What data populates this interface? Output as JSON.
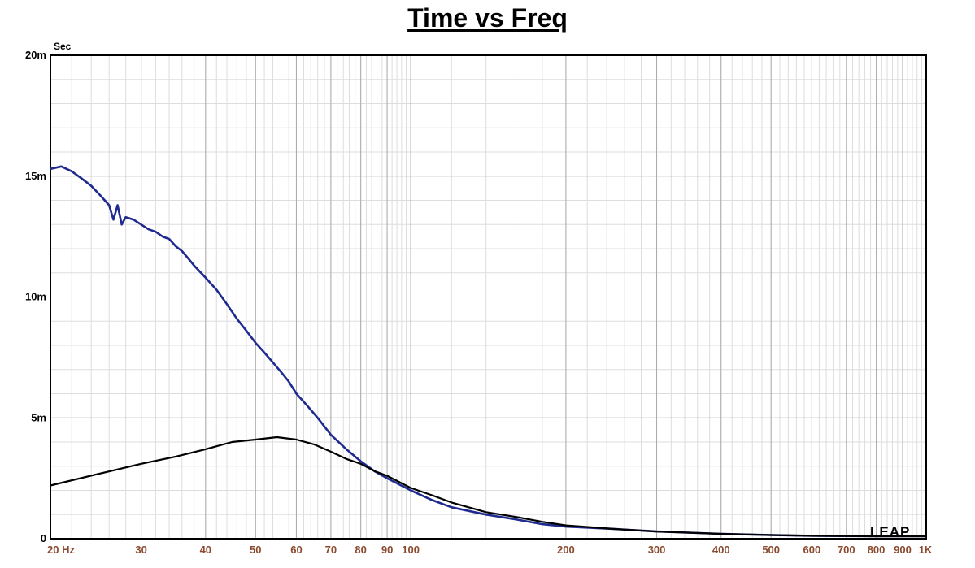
{
  "chart_data": {
    "type": "line",
    "title": "Time vs Freq",
    "y_unit_label": "Sec",
    "xscale": "log",
    "xlim": [
      20,
      1000
    ],
    "ylim": [
      0,
      0.02
    ],
    "grid": true,
    "x_tick_labels": [
      {
        "v": 20,
        "t": "20  Hz"
      },
      {
        "v": 30,
        "t": "30"
      },
      {
        "v": 40,
        "t": "40"
      },
      {
        "v": 50,
        "t": "50"
      },
      {
        "v": 60,
        "t": "60"
      },
      {
        "v": 70,
        "t": "70"
      },
      {
        "v": 80,
        "t": "80"
      },
      {
        "v": 90,
        "t": "90"
      },
      {
        "v": 100,
        "t": "100"
      },
      {
        "v": 200,
        "t": "200"
      },
      {
        "v": 300,
        "t": "300"
      },
      {
        "v": 400,
        "t": "400"
      },
      {
        "v": 500,
        "t": "500"
      },
      {
        "v": 600,
        "t": "600"
      },
      {
        "v": 700,
        "t": "700"
      },
      {
        "v": 800,
        "t": "800"
      },
      {
        "v": 900,
        "t": "900"
      },
      {
        "v": 1000,
        "t": "1K"
      }
    ],
    "y_tick_labels": [
      {
        "v": 0,
        "t": "0"
      },
      {
        "v": 0.005,
        "t": "5m"
      },
      {
        "v": 0.01,
        "t": "10m"
      },
      {
        "v": 0.015,
        "t": "15m"
      },
      {
        "v": 0.02,
        "t": "20m"
      }
    ],
    "series": [
      {
        "color": "#1f2a8f",
        "points": [
          [
            20,
            0.0153
          ],
          [
            21,
            0.0154
          ],
          [
            22,
            0.0152
          ],
          [
            23,
            0.0149
          ],
          [
            24,
            0.0146
          ],
          [
            25,
            0.0142
          ],
          [
            26,
            0.0138
          ],
          [
            26.5,
            0.0132
          ],
          [
            27,
            0.0138
          ],
          [
            27.5,
            0.013
          ],
          [
            28,
            0.0133
          ],
          [
            29,
            0.0132
          ],
          [
            30,
            0.013
          ],
          [
            31,
            0.0128
          ],
          [
            32,
            0.0127
          ],
          [
            33,
            0.0125
          ],
          [
            34,
            0.0124
          ],
          [
            35,
            0.0121
          ],
          [
            36,
            0.0119
          ],
          [
            37,
            0.0116
          ],
          [
            38,
            0.0113
          ],
          [
            40,
            0.0108
          ],
          [
            42,
            0.0103
          ],
          [
            44,
            0.0097
          ],
          [
            46,
            0.0091
          ],
          [
            48,
            0.0086
          ],
          [
            50,
            0.0081
          ],
          [
            52,
            0.0077
          ],
          [
            54,
            0.0073
          ],
          [
            56,
            0.0069
          ],
          [
            58,
            0.0065
          ],
          [
            60,
            0.006
          ],
          [
            63,
            0.0055
          ],
          [
            66,
            0.005
          ],
          [
            70,
            0.0043
          ],
          [
            75,
            0.0037
          ],
          [
            80,
            0.0032
          ],
          [
            85,
            0.0028
          ],
          [
            90,
            0.0025
          ],
          [
            100,
            0.002
          ],
          [
            110,
            0.0016
          ],
          [
            120,
            0.0013
          ],
          [
            140,
            0.001
          ],
          [
            160,
            0.0008
          ],
          [
            180,
            0.0006
          ],
          [
            200,
            0.0005
          ],
          [
            250,
            0.0004
          ],
          [
            300,
            0.0003
          ],
          [
            400,
            0.0002
          ],
          [
            500,
            0.00015
          ],
          [
            600,
            0.00012
          ],
          [
            800,
            0.0001
          ],
          [
            1000,
            0.0001
          ]
        ]
      },
      {
        "color": "#000000",
        "points": [
          [
            20,
            0.0022
          ],
          [
            25,
            0.0027
          ],
          [
            30,
            0.0031
          ],
          [
            35,
            0.0034
          ],
          [
            40,
            0.0037
          ],
          [
            45,
            0.004
          ],
          [
            50,
            0.0041
          ],
          [
            55,
            0.0042
          ],
          [
            60,
            0.0041
          ],
          [
            65,
            0.0039
          ],
          [
            70,
            0.0036
          ],
          [
            75,
            0.0033
          ],
          [
            80,
            0.0031
          ],
          [
            85,
            0.0028
          ],
          [
            90,
            0.0026
          ],
          [
            100,
            0.0021
          ],
          [
            110,
            0.0018
          ],
          [
            120,
            0.0015
          ],
          [
            140,
            0.0011
          ],
          [
            160,
            0.0009
          ],
          [
            180,
            0.0007
          ],
          [
            200,
            0.00055
          ],
          [
            250,
            0.0004
          ],
          [
            300,
            0.0003
          ],
          [
            400,
            0.0002
          ],
          [
            500,
            0.00015
          ],
          [
            600,
            0.00012
          ],
          [
            800,
            0.0001
          ],
          [
            1000,
            0.0001
          ]
        ]
      }
    ]
  },
  "watermark": "LEAP"
}
